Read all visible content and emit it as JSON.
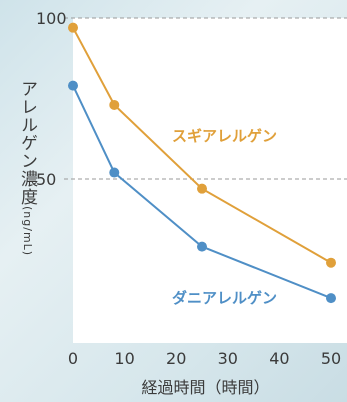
{
  "chart_data": {
    "type": "line",
    "title": "",
    "ylabel": "アレルゲン濃度",
    "yunit": "(ng/mL)",
    "xlabel": "経過時間（時間）",
    "xlim": [
      0,
      52
    ],
    "ylim": [
      0,
      100
    ],
    "x_ticks": [
      0,
      10,
      20,
      30,
      40,
      50
    ],
    "y_ticks": [
      50,
      100
    ],
    "grid": "dashed horizontal at 50 and 100",
    "series": [
      {
        "name": "スギアレルゲン",
        "color": "#e0a03a",
        "points": [
          [
            0,
            97
          ],
          [
            8,
            73
          ],
          [
            25,
            47
          ],
          [
            50,
            24
          ]
        ]
      },
      {
        "name": "ダニアレルゲン",
        "color": "#4f8fc6",
        "points": [
          [
            0,
            79
          ],
          [
            8,
            52
          ],
          [
            25,
            29
          ],
          [
            50,
            13
          ]
        ]
      }
    ]
  }
}
